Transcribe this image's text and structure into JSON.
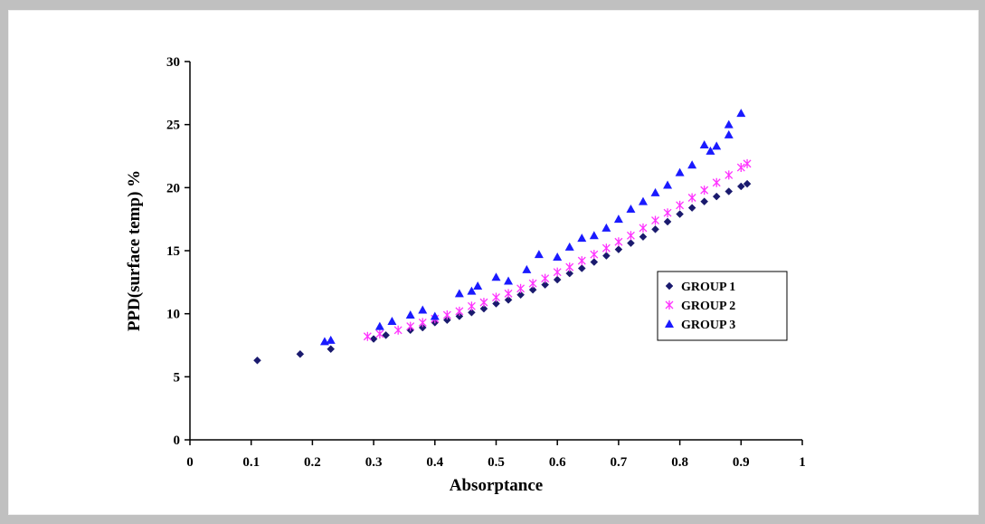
{
  "chart_data": {
    "type": "scatter",
    "xlabel": "Absorptance",
    "ylabel": "PPD(surface temp) %",
    "xlim": [
      0,
      1
    ],
    "ylim": [
      0,
      30
    ],
    "x_ticks": [
      0,
      0.1,
      0.2,
      0.3,
      0.4,
      0.5,
      0.6,
      0.7,
      0.8,
      0.9,
      1
    ],
    "y_ticks": [
      0,
      5,
      10,
      15,
      20,
      25,
      30
    ],
    "grid": false,
    "legend_position": "right",
    "series": [
      {
        "name": "GROUP 1",
        "marker": "diamond",
        "color": "#1a1a6e",
        "points": [
          [
            0.11,
            6.3
          ],
          [
            0.18,
            6.8
          ],
          [
            0.23,
            7.2
          ],
          [
            0.3,
            8.0
          ],
          [
            0.32,
            8.3
          ],
          [
            0.36,
            8.7
          ],
          [
            0.38,
            8.9
          ],
          [
            0.4,
            9.3
          ],
          [
            0.42,
            9.5
          ],
          [
            0.44,
            9.8
          ],
          [
            0.46,
            10.1
          ],
          [
            0.48,
            10.4
          ],
          [
            0.5,
            10.8
          ],
          [
            0.52,
            11.1
          ],
          [
            0.54,
            11.5
          ],
          [
            0.56,
            11.9
          ],
          [
            0.58,
            12.3
          ],
          [
            0.6,
            12.7
          ],
          [
            0.62,
            13.2
          ],
          [
            0.64,
            13.6
          ],
          [
            0.66,
            14.1
          ],
          [
            0.68,
            14.6
          ],
          [
            0.7,
            15.1
          ],
          [
            0.72,
            15.6
          ],
          [
            0.74,
            16.1
          ],
          [
            0.76,
            16.7
          ],
          [
            0.78,
            17.3
          ],
          [
            0.8,
            17.9
          ],
          [
            0.82,
            18.4
          ],
          [
            0.84,
            18.9
          ],
          [
            0.86,
            19.3
          ],
          [
            0.88,
            19.7
          ],
          [
            0.9,
            20.1
          ],
          [
            0.91,
            20.3
          ]
        ]
      },
      {
        "name": "GROUP 2",
        "marker": "star",
        "color": "#ff33ff",
        "points": [
          [
            0.29,
            8.2
          ],
          [
            0.31,
            8.4
          ],
          [
            0.34,
            8.7
          ],
          [
            0.36,
            9.0
          ],
          [
            0.38,
            9.3
          ],
          [
            0.4,
            9.6
          ],
          [
            0.42,
            9.9
          ],
          [
            0.44,
            10.2
          ],
          [
            0.46,
            10.6
          ],
          [
            0.48,
            10.9
          ],
          [
            0.5,
            11.3
          ],
          [
            0.52,
            11.6
          ],
          [
            0.54,
            12.0
          ],
          [
            0.56,
            12.4
          ],
          [
            0.58,
            12.8
          ],
          [
            0.6,
            13.3
          ],
          [
            0.62,
            13.7
          ],
          [
            0.64,
            14.2
          ],
          [
            0.66,
            14.7
          ],
          [
            0.68,
            15.2
          ],
          [
            0.7,
            15.7
          ],
          [
            0.72,
            16.2
          ],
          [
            0.74,
            16.8
          ],
          [
            0.76,
            17.4
          ],
          [
            0.78,
            18.0
          ],
          [
            0.8,
            18.6
          ],
          [
            0.82,
            19.2
          ],
          [
            0.84,
            19.8
          ],
          [
            0.86,
            20.4
          ],
          [
            0.88,
            21.0
          ],
          [
            0.9,
            21.6
          ],
          [
            0.91,
            21.9
          ]
        ]
      },
      {
        "name": "GROUP 3",
        "marker": "triangle",
        "color": "#1a1aff",
        "points": [
          [
            0.22,
            7.8
          ],
          [
            0.23,
            7.9
          ],
          [
            0.31,
            9.0
          ],
          [
            0.33,
            9.4
          ],
          [
            0.36,
            9.9
          ],
          [
            0.38,
            10.3
          ],
          [
            0.4,
            9.8
          ],
          [
            0.44,
            11.6
          ],
          [
            0.46,
            11.8
          ],
          [
            0.47,
            12.2
          ],
          [
            0.5,
            12.9
          ],
          [
            0.52,
            12.6
          ],
          [
            0.55,
            13.5
          ],
          [
            0.57,
            14.7
          ],
          [
            0.6,
            14.5
          ],
          [
            0.62,
            15.3
          ],
          [
            0.64,
            16.0
          ],
          [
            0.66,
            16.2
          ],
          [
            0.68,
            16.8
          ],
          [
            0.7,
            17.5
          ],
          [
            0.72,
            18.3
          ],
          [
            0.74,
            18.9
          ],
          [
            0.76,
            19.6
          ],
          [
            0.78,
            20.2
          ],
          [
            0.8,
            21.2
          ],
          [
            0.82,
            21.8
          ],
          [
            0.84,
            23.4
          ],
          [
            0.85,
            22.9
          ],
          [
            0.86,
            23.3
          ],
          [
            0.88,
            24.2
          ],
          [
            0.88,
            25.0
          ],
          [
            0.9,
            25.9
          ]
        ]
      }
    ]
  }
}
